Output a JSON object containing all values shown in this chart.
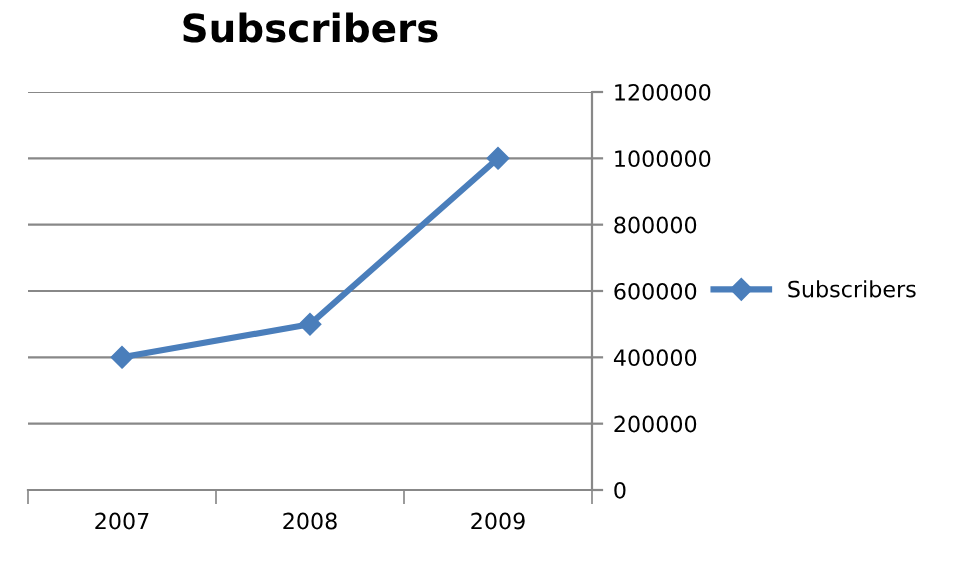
{
  "chart_data": {
    "type": "line",
    "title": "Subscribers",
    "categories": [
      "2007",
      "2008",
      "2009"
    ],
    "series": [
      {
        "name": "Subscribers",
        "color": "#4a7ebb",
        "values": [
          400000,
          500000,
          1000000
        ]
      }
    ],
    "ylim": [
      0,
      1200000
    ],
    "yticks": [
      0,
      200000,
      400000,
      600000,
      800000,
      1000000,
      1200000
    ],
    "grid": "y",
    "legend": "right",
    "marker": "diamond",
    "line_style": "solid"
  }
}
